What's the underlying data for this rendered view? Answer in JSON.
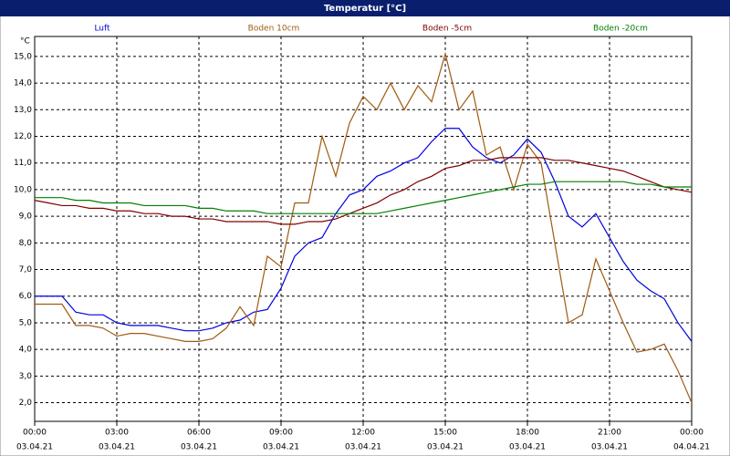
{
  "chart_data": {
    "type": "line",
    "title": "Temperatur [°C]",
    "y_unit": "°C",
    "x": [
      0,
      0.5,
      1,
      1.5,
      2,
      2.5,
      3,
      3.5,
      4,
      4.5,
      5,
      5.5,
      6,
      6.5,
      7,
      7.5,
      8,
      8.5,
      9,
      9.5,
      10,
      10.5,
      11,
      11.5,
      12,
      12.5,
      13,
      13.5,
      14,
      14.5,
      15,
      15.5,
      16,
      16.5,
      17,
      17.5,
      18,
      18.5,
      19,
      19.5,
      20,
      20.5,
      21,
      21.5,
      22,
      22.5,
      23,
      23.5,
      24
    ],
    "xlim": [
      0,
      24
    ],
    "xticks": [
      {
        "value": 0,
        "label": "00:00"
      },
      {
        "value": 3,
        "label": "03:00"
      },
      {
        "value": 6,
        "label": "06:00"
      },
      {
        "value": 9,
        "label": "09:00"
      },
      {
        "value": 12,
        "label": "12:00"
      },
      {
        "value": 15,
        "label": "15:00"
      },
      {
        "value": 18,
        "label": "18:00"
      },
      {
        "value": 21,
        "label": "21:00"
      },
      {
        "value": 24,
        "label": "00:00"
      }
    ],
    "xtick_dates": [
      "03.04.21",
      "03.04.21",
      "03.04.21",
      "03.04.21",
      "03.04.21",
      "03.04.21",
      "03.04.21",
      "03.04.21",
      "04.04.21"
    ],
    "ylim": [
      1.3,
      15.75
    ],
    "yticks": [
      {
        "value": 2,
        "label": "2,0"
      },
      {
        "value": 3,
        "label": "3,0"
      },
      {
        "value": 4,
        "label": "4,0"
      },
      {
        "value": 5,
        "label": "5,0"
      },
      {
        "value": 6,
        "label": "6,0"
      },
      {
        "value": 7,
        "label": "7,0"
      },
      {
        "value": 8,
        "label": "8,0"
      },
      {
        "value": 9,
        "label": "9,0"
      },
      {
        "value": 10,
        "label": "10,0"
      },
      {
        "value": 11,
        "label": "11,0"
      },
      {
        "value": 12,
        "label": "12,0"
      },
      {
        "value": 13,
        "label": "13,0"
      },
      {
        "value": 14,
        "label": "14,0"
      },
      {
        "value": 15,
        "label": "15,0"
      }
    ],
    "grid": true,
    "series": [
      {
        "name": "Luft",
        "color": "#0000e0",
        "values": [
          6.0,
          6.0,
          6.0,
          5.4,
          5.3,
          5.3,
          5.0,
          4.9,
          4.9,
          4.9,
          4.8,
          4.7,
          4.7,
          4.8,
          5.0,
          5.1,
          5.4,
          5.5,
          6.3,
          7.5,
          8.0,
          8.2,
          9.1,
          9.8,
          10.0,
          10.5,
          10.7,
          11.0,
          11.2,
          11.8,
          12.3,
          12.3,
          11.6,
          11.2,
          11.0,
          11.3,
          11.9,
          11.4,
          10.3,
          9.0,
          8.6,
          9.1,
          8.2,
          7.3,
          6.6,
          6.2,
          5.9,
          5.0,
          4.3
        ]
      },
      {
        "name": "Boden 10cm",
        "color": "#a05a10",
        "values": [
          5.7,
          5.7,
          5.7,
          4.9,
          4.9,
          4.8,
          4.5,
          4.6,
          4.6,
          4.5,
          4.4,
          4.3,
          4.3,
          4.4,
          4.8,
          5.6,
          4.9,
          7.5,
          7.1,
          9.5,
          9.5,
          12.0,
          10.5,
          12.5,
          13.5,
          13.0,
          14.0,
          13.0,
          13.9,
          13.3,
          15.1,
          13.0,
          13.7,
          11.3,
          11.6,
          10.0,
          11.7,
          11.0,
          8.0,
          5.0,
          5.3,
          7.4,
          6.2,
          5.0,
          3.9,
          4.0,
          4.2,
          3.2,
          2.0
        ]
      },
      {
        "name": "Boden -5cm",
        "color": "#800000",
        "values": [
          9.6,
          9.5,
          9.4,
          9.4,
          9.3,
          9.3,
          9.2,
          9.2,
          9.1,
          9.1,
          9.0,
          9.0,
          8.9,
          8.9,
          8.8,
          8.8,
          8.8,
          8.8,
          8.7,
          8.7,
          8.8,
          8.8,
          8.9,
          9.1,
          9.3,
          9.5,
          9.8,
          10.0,
          10.3,
          10.5,
          10.8,
          10.9,
          11.1,
          11.1,
          11.2,
          11.2,
          11.2,
          11.2,
          11.1,
          11.1,
          11.0,
          10.9,
          10.8,
          10.7,
          10.5,
          10.3,
          10.1,
          10.0,
          9.9
        ]
      },
      {
        "name": "Boden -20cm",
        "color": "#008000",
        "values": [
          9.7,
          9.7,
          9.7,
          9.6,
          9.6,
          9.5,
          9.5,
          9.5,
          9.4,
          9.4,
          9.4,
          9.4,
          9.3,
          9.3,
          9.2,
          9.2,
          9.2,
          9.1,
          9.1,
          9.1,
          9.1,
          9.1,
          9.1,
          9.1,
          9.1,
          9.1,
          9.2,
          9.3,
          9.4,
          9.5,
          9.6,
          9.7,
          9.8,
          9.9,
          10.0,
          10.1,
          10.2,
          10.2,
          10.3,
          10.3,
          10.3,
          10.3,
          10.3,
          10.3,
          10.2,
          10.2,
          10.1,
          10.1,
          10.1
        ]
      }
    ]
  }
}
